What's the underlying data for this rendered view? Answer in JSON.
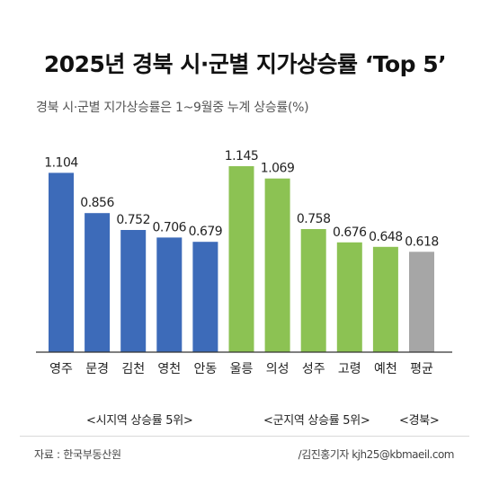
{
  "title": "2025년 경북 시·군별 지가상승률 ‘Top 5’",
  "subtitle": "경북 시·군별 지가상승률은 1~9월중 누계 상승률(%)",
  "colors": {
    "city": "#3d6bb9",
    "county": "#8cc253",
    "average": "#a6a6a6",
    "axis": "#333333"
  },
  "chart_data": {
    "type": "bar",
    "categories": [
      "영주",
      "문경",
      "김천",
      "영천",
      "안동",
      "울릉",
      "의성",
      "성주",
      "고령",
      "예천",
      "평균"
    ],
    "values": [
      1.104,
      0.856,
      0.752,
      0.706,
      0.679,
      1.145,
      1.069,
      0.758,
      0.676,
      0.648,
      0.618
    ],
    "value_labels": [
      "1.104",
      "0.856",
      "0.752",
      "0.706",
      "0.679",
      "1.145",
      "1.069",
      "0.758",
      "0.676",
      "0.648",
      "0.618"
    ],
    "groups": [
      "city",
      "city",
      "city",
      "city",
      "city",
      "county",
      "county",
      "county",
      "county",
      "county",
      "average"
    ],
    "ylim": [
      0,
      1.25
    ],
    "grid": false
  },
  "group_labels": {
    "city": "<시지역 상승률 5위>",
    "county": "<군지역 상승률 5위>",
    "average": "<경북>"
  },
  "source": "자료 : 한국부동산원",
  "credit": "/김진홍기자 kjh25@kbmaeil.com"
}
